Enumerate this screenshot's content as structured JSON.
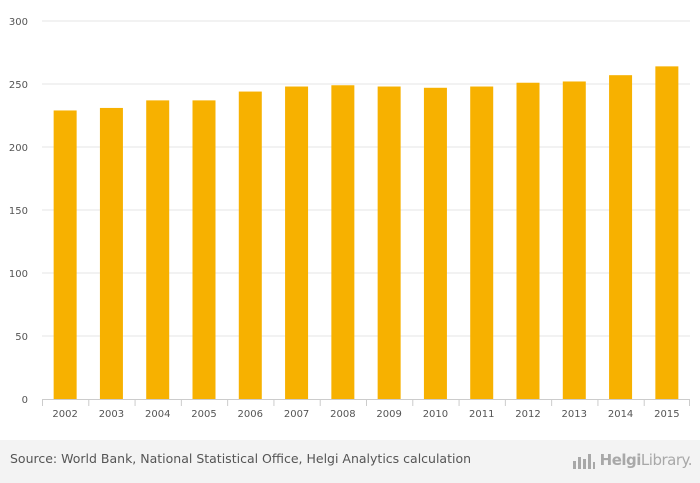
{
  "chart_data": {
    "type": "bar",
    "title": "",
    "xlabel": "",
    "ylabel": "",
    "categories": [
      "2002",
      "2003",
      "2004",
      "2005",
      "2006",
      "2007",
      "2008",
      "2009",
      "2010",
      "2011",
      "2012",
      "2013",
      "2014",
      "2015"
    ],
    "values": [
      229,
      231,
      237,
      237,
      244,
      248,
      249,
      248,
      247,
      248,
      251,
      252,
      257,
      264
    ],
    "ylim": [
      0,
      300
    ],
    "yticks": [
      "0",
      "50",
      "100",
      "150",
      "200",
      "250",
      "300"
    ],
    "grid": true,
    "bar_color": "#f7b100",
    "grid_color": "#e6e6e6"
  },
  "footer": {
    "source": "Source: World Bank, National Statistical Office, Helgi Analytics calculation",
    "brand_bold": "Helgi",
    "brand_light": "Library."
  }
}
